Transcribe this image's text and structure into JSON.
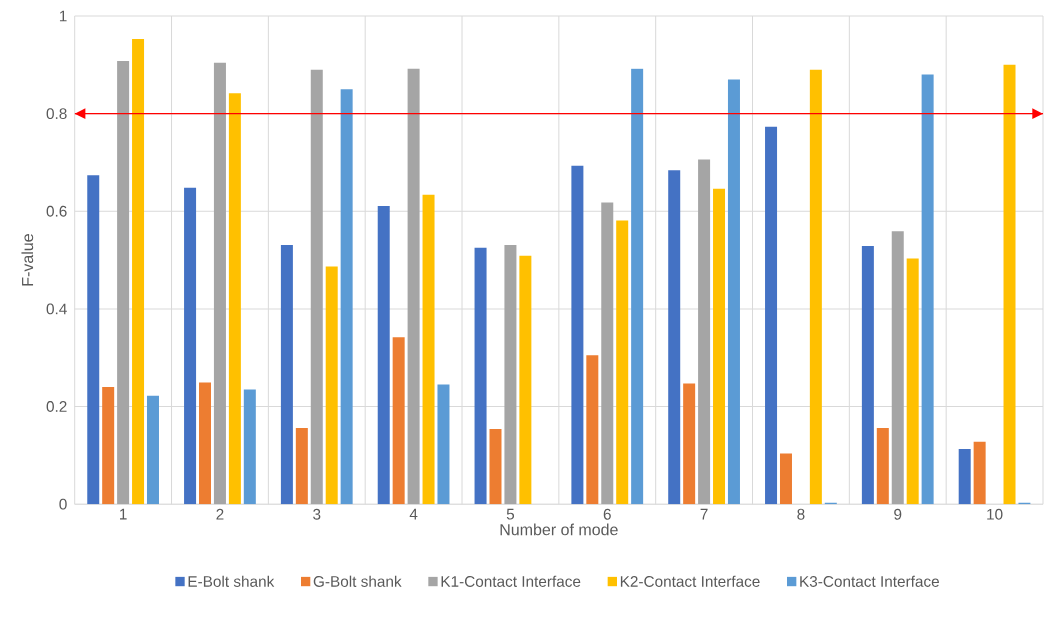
{
  "chart_data": {
    "type": "bar",
    "xlabel": "Number of mode",
    "ylabel": "F-value",
    "categories": [
      "1",
      "2",
      "3",
      "4",
      "5",
      "6",
      "7",
      "8",
      "9",
      "10"
    ],
    "series": [
      {
        "name": "E-Bolt shank",
        "color": "#4472c4",
        "values": [
          0.674,
          0.648,
          0.531,
          0.611,
          0.525,
          0.693,
          0.684,
          0.773,
          0.529,
          0.113
        ]
      },
      {
        "name": "G-Bolt shank",
        "color": "#ed7d31",
        "values": [
          0.24,
          0.249,
          0.156,
          0.342,
          0.154,
          0.305,
          0.247,
          0.104,
          0.156,
          0.128
        ]
      },
      {
        "name": "K1-Contact Interface",
        "color": "#a5a5a5",
        "values": [
          0.908,
          0.904,
          0.89,
          0.892,
          0.531,
          0.618,
          0.706,
          0,
          0.559,
          0
        ]
      },
      {
        "name": "K2-Contact Interface",
        "color": "#ffc000",
        "values": [
          0.953,
          0.842,
          0.487,
          0.634,
          0.509,
          0.581,
          0.646,
          0.89,
          0.503,
          0.9
        ]
      },
      {
        "name": "K3-Contact Interface",
        "color": "#5b9bd5",
        "values": [
          0.222,
          0.235,
          0.85,
          0.245,
          0,
          0.892,
          0.87,
          0.003,
          0.88,
          0.003
        ]
      }
    ],
    "ylim": [
      0,
      1
    ],
    "yticks": [
      0,
      0.2,
      0.4,
      0.6,
      0.8,
      1
    ],
    "grid": true,
    "legend": "bottom",
    "ref_lines": [
      {
        "axis": "y",
        "value": 0.8,
        "color": "#ff0000"
      }
    ]
  }
}
